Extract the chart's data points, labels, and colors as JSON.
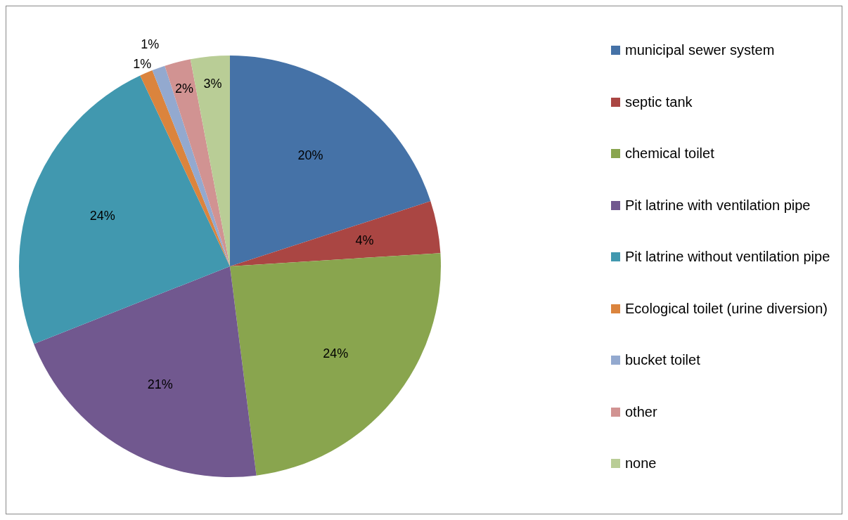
{
  "chart_data": {
    "type": "pie",
    "categories": [
      "municipal sewer system",
      "septic tank",
      "chemical toilet",
      "Pit latrine with ventilation pipe",
      "Pit latrine without ventilation pipe",
      "Ecological toilet (urine diversion)",
      "bucket toilet",
      "other",
      "none"
    ],
    "values": [
      20,
      4,
      24,
      21,
      24,
      1,
      1,
      2,
      3
    ],
    "value_labels": [
      "20%",
      "4%",
      "24%",
      "21%",
      "24%",
      "1%",
      "1%",
      "2%",
      "3%"
    ],
    "colors": [
      "#4572a7",
      "#aa4643",
      "#89a54e",
      "#71588f",
      "#4198af",
      "#db843d",
      "#93a9cf",
      "#d19392",
      "#b9cd96"
    ],
    "legend": "right"
  }
}
